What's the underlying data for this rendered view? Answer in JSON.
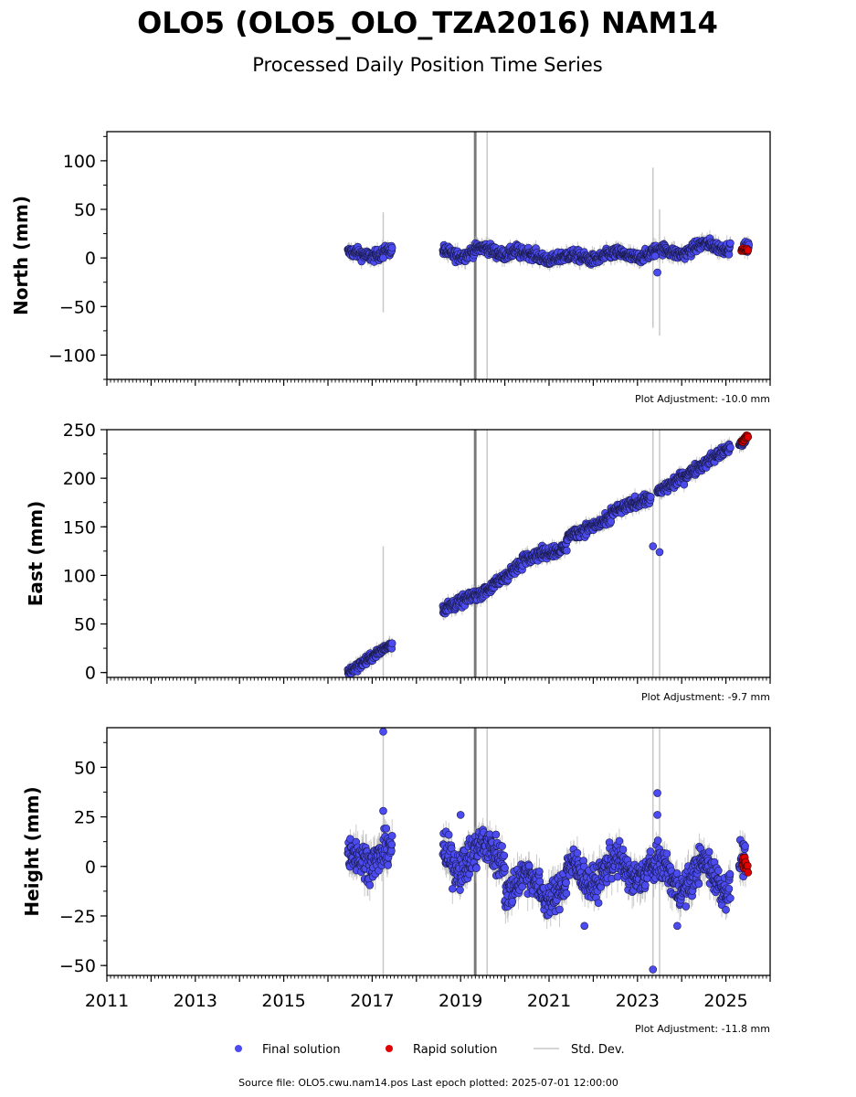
{
  "title": "OLO5 (OLO5_OLO_TZA2016) NAM14",
  "subtitle": "Processed Daily Position Time Series",
  "source_note": "Source file: OLO5.cwu.nam14.pos  Last epoch plotted: 2025-07-01 12:00:00",
  "legend": [
    {
      "label": "Final solution",
      "color": "#4b4bf0",
      "marker": "circle"
    },
    {
      "label": "Rapid solution",
      "color": "#e00000",
      "marker": "circle"
    },
    {
      "label": "Std. Dev.",
      "color": "#c8c8c8",
      "marker": "line"
    }
  ],
  "colors": {
    "final": "#4b4bf0",
    "rapid": "#e00000",
    "stddev": "#b4b4b4",
    "outlier_bar": "#606060"
  },
  "chart_data": [
    {
      "type": "scatter",
      "ylabel": "North (mm)",
      "xlim": [
        2011,
        2026
      ],
      "ylim": [
        -125,
        130
      ],
      "y_ticks": [
        100,
        50,
        0,
        -50,
        -100
      ],
      "y_tick_labels": [
        "100",
        "50",
        "0",
        "−50",
        "−100"
      ],
      "adjustment_note": "Plot Adjustment: -10.0 mm",
      "segments": [
        {
          "start": 2016.45,
          "end": 2017.45,
          "trend": [
            3,
            6
          ],
          "amp": 3,
          "noise": 4
        },
        {
          "start": 2018.6,
          "end": 2020.3,
          "trend": [
            5,
            8
          ],
          "amp": 4,
          "noise": 4
        },
        {
          "start": 2020.3,
          "end": 2021.4,
          "trend": [
            3,
            0
          ],
          "amp": 3,
          "noise": 4
        },
        {
          "start": 2021.4,
          "end": 2023.3,
          "trend": [
            0,
            4
          ],
          "amp": 3,
          "noise": 4
        },
        {
          "start": 2023.3,
          "end": 2025.1,
          "trend": [
            4,
            14
          ],
          "amp": 4,
          "noise": 4
        },
        {
          "start": 2025.4,
          "end": 2025.52,
          "trend": [
            12,
            10
          ],
          "amp": 1,
          "noise": 3
        }
      ],
      "outliers": [
        [
          2023.45,
          -15
        ],
        [
          2023.4,
          2
        ],
        [
          2017.25,
          0
        ]
      ],
      "rapid": {
        "start": 2025.35,
        "end": 2025.5,
        "trend": [
          9,
          8
        ],
        "noise": 1.5
      },
      "stddev_lines": [
        [
          2017.25,
          -56,
          47
        ],
        [
          2023.35,
          -72,
          93
        ],
        [
          2023.5,
          -80,
          50
        ],
        [
          2019.6,
          -125,
          130
        ]
      ],
      "dark_bands": [
        2019.3,
        2019.36
      ]
    },
    {
      "type": "scatter",
      "ylabel": "East (mm)",
      "xlim": [
        2011,
        2026
      ],
      "ylim": [
        -5,
        250
      ],
      "y_ticks": [
        250,
        200,
        150,
        100,
        50,
        0
      ],
      "y_tick_labels": [
        "250",
        "200",
        "150",
        "100",
        "50",
        "0"
      ],
      "adjustment_note": "Plot Adjustment: -9.7 mm",
      "segments": [
        {
          "start": 2016.45,
          "end": 2017.45,
          "trend": [
            0,
            30
          ],
          "amp": 0,
          "noise": 3
        },
        {
          "start": 2018.6,
          "end": 2019.6,
          "trend": [
            65,
            85
          ],
          "amp": 0,
          "noise": 4
        },
        {
          "start": 2019.6,
          "end": 2020.4,
          "trend": [
            85,
            112
          ],
          "amp": 0,
          "noise": 4
        },
        {
          "start": 2020.4,
          "end": 2021.4,
          "trend": [
            118,
            128
          ],
          "amp": 0,
          "noise": 4
        },
        {
          "start": 2021.4,
          "end": 2022.4,
          "trend": [
            140,
            158
          ],
          "amp": 0,
          "noise": 4
        },
        {
          "start": 2022.4,
          "end": 2023.3,
          "trend": [
            165,
            180
          ],
          "amp": 0,
          "noise": 4
        },
        {
          "start": 2023.45,
          "end": 2025.1,
          "trend": [
            185,
            232
          ],
          "amp": 0,
          "noise": 4
        },
        {
          "start": 2025.3,
          "end": 2025.45,
          "trend": [
            234,
            238
          ],
          "amp": 0,
          "noise": 2
        }
      ],
      "outliers": [
        [
          2023.35,
          130
        ],
        [
          2023.5,
          124
        ]
      ],
      "rapid": {
        "start": 2025.35,
        "end": 2025.5,
        "trend": [
          238,
          244
        ],
        "noise": 2
      },
      "stddev_lines": [
        [
          2017.25,
          -5,
          130
        ],
        [
          2023.35,
          -5,
          250
        ],
        [
          2023.5,
          -5,
          250
        ],
        [
          2019.6,
          -5,
          250
        ]
      ],
      "dark_bands": [
        2019.3,
        2019.36
      ]
    },
    {
      "type": "scatter",
      "ylabel": "Height (mm)",
      "xlim": [
        2011,
        2026
      ],
      "ylim": [
        -55,
        70
      ],
      "y_ticks": [
        50,
        25,
        0,
        -25,
        -50
      ],
      "y_tick_labels": [
        "50",
        "25",
        "0",
        "−25",
        "−50"
      ],
      "x_ticks": [
        2011,
        2013,
        2015,
        2017,
        2019,
        2021,
        2023,
        2025
      ],
      "x_tick_labels": [
        "2011",
        "2013",
        "2015",
        "2017",
        "2019",
        "2021",
        "2023",
        "2025"
      ],
      "adjustment_note": "Plot Adjustment: -11.8 mm",
      "segments": [
        {
          "start": 2016.45,
          "end": 2017.45,
          "trend": [
            3,
            8
          ],
          "amp": 4,
          "noise": 6
        },
        {
          "start": 2018.6,
          "end": 2020.0,
          "trend": [
            3,
            8
          ],
          "amp": 5,
          "noise": 7
        },
        {
          "start": 2020.0,
          "end": 2021.4,
          "trend": [
            -8,
            -12
          ],
          "amp": 6,
          "noise": 6
        },
        {
          "start": 2021.4,
          "end": 2023.3,
          "trend": [
            -5,
            0
          ],
          "amp": 6,
          "noise": 6
        },
        {
          "start": 2023.3,
          "end": 2025.1,
          "trend": [
            -5,
            -5
          ],
          "amp": 7,
          "noise": 6
        },
        {
          "start": 2025.3,
          "end": 2025.45,
          "trend": [
            3,
            3
          ],
          "amp": 1,
          "noise": 6
        }
      ],
      "outliers": [
        [
          2017.25,
          68
        ],
        [
          2017.25,
          28
        ],
        [
          2023.45,
          37
        ],
        [
          2023.45,
          26
        ],
        [
          2023.35,
          -52
        ],
        [
          2021.8,
          -30
        ],
        [
          2023.9,
          -30
        ],
        [
          2019.0,
          26
        ]
      ],
      "rapid": {
        "start": 2025.38,
        "end": 2025.5,
        "trend": [
          3,
          -2
        ],
        "noise": 3
      },
      "stddev_lines": [
        [
          2017.25,
          -55,
          70
        ],
        [
          2023.35,
          -55,
          70
        ],
        [
          2023.5,
          -55,
          70
        ],
        [
          2019.6,
          -55,
          70
        ]
      ],
      "dark_bands": [
        2019.3,
        2019.36
      ]
    }
  ]
}
